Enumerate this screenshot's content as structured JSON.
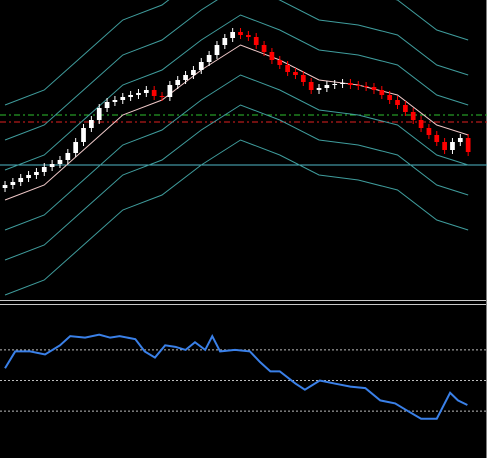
{
  "chart_data": [
    {
      "type": "candlestick",
      "x": [
        0,
        1,
        2,
        3,
        4,
        5,
        6,
        7,
        8,
        9,
        10,
        11,
        12,
        13,
        14,
        15,
        16,
        17,
        18,
        19,
        20,
        21,
        22,
        23,
        24,
        25,
        26,
        27,
        28,
        29,
        30,
        31,
        32,
        33,
        34,
        35,
        36,
        37,
        38,
        39,
        40,
        41,
        42,
        43,
        44,
        45,
        46,
        47,
        48,
        49,
        50,
        51,
        52,
        53,
        54,
        55,
        56,
        57,
        58,
        59
      ],
      "open": [
        112,
        115,
        118,
        122,
        125,
        128,
        133,
        136,
        140,
        147,
        158,
        172,
        180,
        192,
        198,
        200,
        203,
        205,
        207,
        210,
        204,
        203,
        215,
        220,
        225,
        230,
        238,
        245,
        255,
        262,
        268,
        265,
        263,
        255,
        248,
        240,
        235,
        228,
        225,
        218,
        210,
        212,
        215,
        216,
        217,
        215,
        214,
        213,
        210,
        205,
        200,
        195,
        188,
        180,
        172,
        165,
        158,
        150,
        158,
        162
      ],
      "high": [
        119,
        122,
        126,
        129,
        132,
        137,
        140,
        144,
        151,
        162,
        176,
        184,
        196,
        202,
        204,
        207,
        209,
        211,
        214,
        214,
        208,
        219,
        224,
        229,
        234,
        242,
        249,
        259,
        266,
        272,
        272,
        269,
        267,
        259,
        252,
        244,
        239,
        232,
        229,
        222,
        216,
        219,
        220,
        221,
        221,
        219,
        218,
        217,
        214,
        209,
        204,
        199,
        192,
        184,
        176,
        169,
        162,
        162,
        166,
        166
      ],
      "low": [
        108,
        111,
        114,
        118,
        121,
        124,
        129,
        132,
        136,
        143,
        154,
        168,
        176,
        188,
        194,
        196,
        199,
        201,
        203,
        200,
        199,
        199,
        211,
        216,
        221,
        226,
        234,
        241,
        251,
        258,
        261,
        259,
        251,
        244,
        236,
        231,
        224,
        221,
        214,
        206,
        206,
        208,
        211,
        212,
        211,
        210,
        209,
        206,
        201,
        196,
        191,
        184,
        176,
        168,
        161,
        154,
        146,
        146,
        154,
        144
      ],
      "close": [
        115,
        118,
        122,
        125,
        128,
        133,
        136,
        140,
        147,
        158,
        172,
        180,
        192,
        198,
        200,
        203,
        205,
        207,
        210,
        204,
        203,
        215,
        220,
        225,
        230,
        238,
        245,
        255,
        262,
        268,
        265,
        263,
        255,
        248,
        240,
        235,
        228,
        225,
        218,
        210,
        212,
        215,
        216,
        217,
        215,
        214,
        213,
        210,
        205,
        200,
        195,
        188,
        180,
        172,
        165,
        158,
        150,
        158,
        162,
        148
      ],
      "up_color": "#ffffff",
      "down_color": "#ff0000",
      "bands_x": [
        0,
        5,
        10,
        15,
        20,
        25,
        30,
        35,
        40,
        45,
        50,
        55,
        59
      ],
      "bands": [
        {
          "color": "#f0c8c8",
          "values": [
            100,
            115,
            150,
            185,
            200,
            230,
            255,
            240,
            220,
            215,
            205,
            175,
            165
          ]
        },
        {
          "color": "#3f9c9c",
          "values": [
            130,
            145,
            180,
            215,
            230,
            260,
            285,
            270,
            250,
            245,
            235,
            205,
            195
          ]
        },
        {
          "color": "#3f9c9c",
          "values": [
            160,
            175,
            210,
            245,
            260,
            290,
            315,
            300,
            280,
            275,
            265,
            235,
            225
          ]
        },
        {
          "color": "#3f9c9c",
          "values": [
            195,
            210,
            245,
            280,
            295,
            325,
            350,
            335,
            315,
            310,
            300,
            270,
            260
          ]
        },
        {
          "color": "#3f9c9c",
          "values": [
            70,
            85,
            120,
            155,
            170,
            200,
            225,
            210,
            190,
            185,
            175,
            145,
            135
          ]
        },
        {
          "color": "#3f9c9c",
          "values": [
            40,
            55,
            90,
            125,
            140,
            170,
            195,
            180,
            160,
            155,
            145,
            115,
            105
          ]
        },
        {
          "color": "#3f9c9c",
          "values": [
            5,
            20,
            55,
            90,
            105,
            135,
            160,
            145,
            125,
            120,
            110,
            80,
            70
          ]
        }
      ],
      "levels": [
        {
          "value": 185,
          "color": "#2ec02e",
          "dash": true
        },
        {
          "value": 178,
          "color": "#e02020",
          "dash": true
        },
        {
          "value": 135,
          "color": "#4fb8c8",
          "dash": false
        }
      ],
      "xlim": [
        -0.64,
        61.4
      ],
      "ylim": [
        0,
        300
      ]
    },
    {
      "type": "line",
      "x": [
        0,
        1.3,
        3.2,
        5.1,
        7,
        8.3,
        10.2,
        12,
        13.4,
        14.6,
        16.6,
        17.8,
        19.1,
        20.4,
        21.7,
        23,
        24.2,
        25.5,
        26.4,
        27.4,
        29.3,
        31.2,
        32.5,
        33.8,
        35,
        37,
        38.2,
        40.1,
        42,
        44,
        45.9,
        47.8,
        49.7,
        51,
        53,
        55,
        56.7,
        57.7,
        58.9
      ],
      "values": [
        58,
        69,
        69,
        67,
        73,
        79,
        78,
        80,
        78,
        79,
        77,
        69,
        65,
        73,
        72,
        70,
        75,
        70,
        79,
        69,
        70,
        69,
        62,
        56,
        56,
        48,
        44,
        50,
        48,
        46,
        45,
        37,
        35,
        31,
        25,
        25,
        42,
        37,
        34
      ],
      "color": "#3a80e8",
      "levels": [
        70,
        50,
        30
      ],
      "xlim": [
        -0.64,
        61.4
      ],
      "ylim": [
        0,
        100
      ]
    }
  ]
}
